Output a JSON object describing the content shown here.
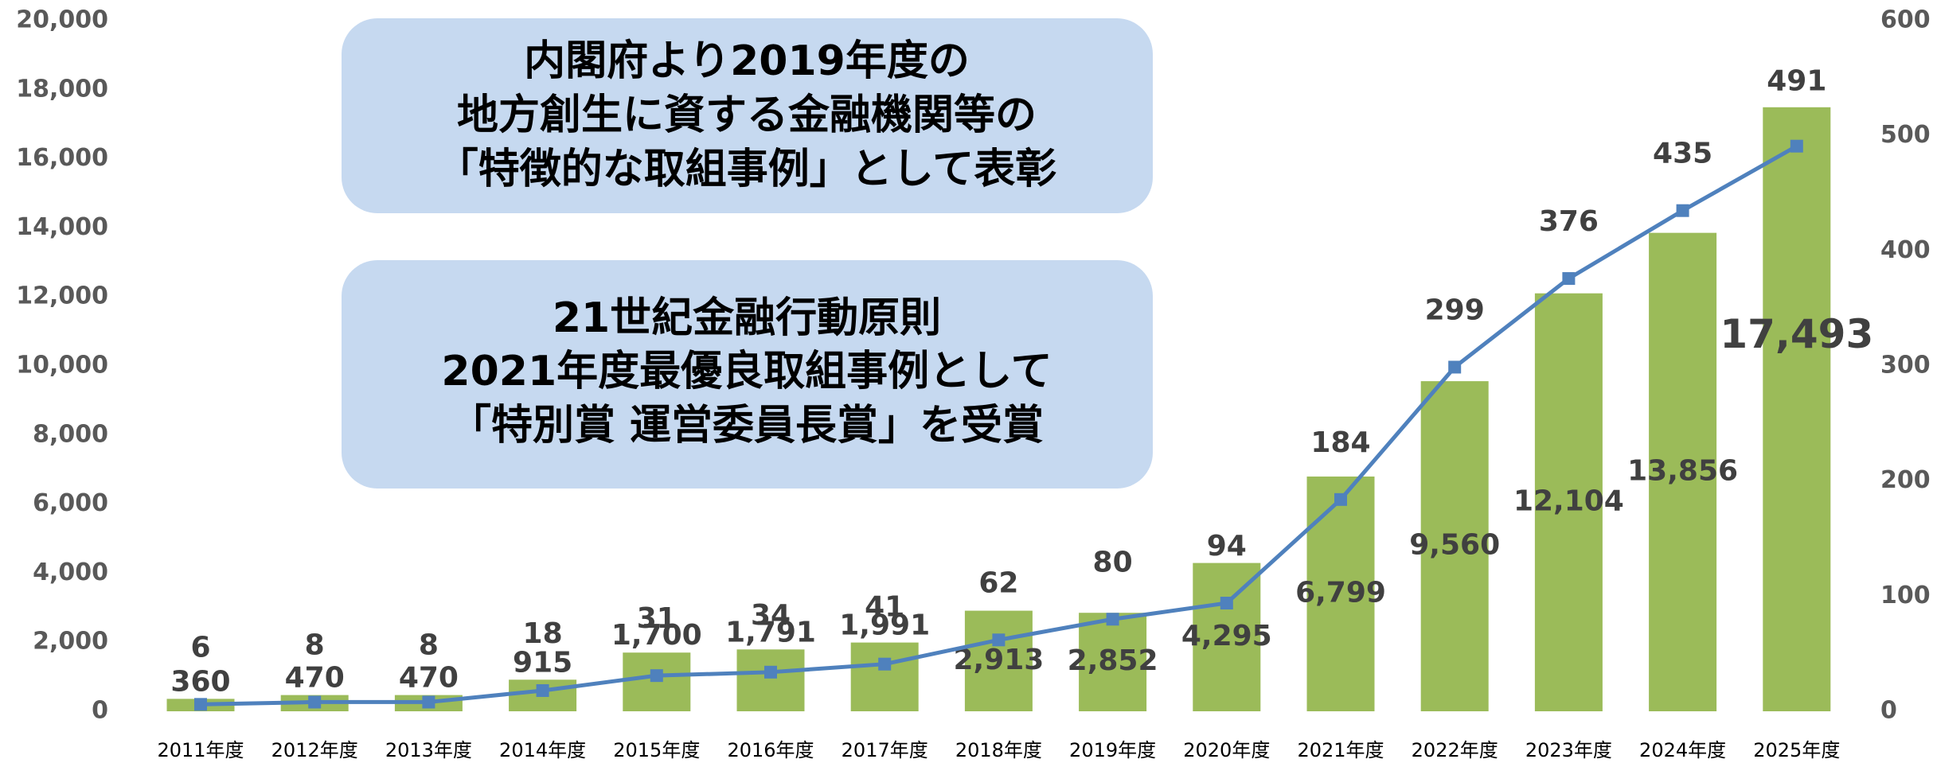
{
  "chart_data": {
    "type": "combo",
    "categories": [
      "2011年度",
      "2012年度",
      "2013年度",
      "2014年度",
      "2015年度",
      "2016年度",
      "2017年度",
      "2018年度",
      "2019年度",
      "2020年度",
      "2021年度",
      "2022年度",
      "2023年度",
      "2024年度",
      "2025年度"
    ],
    "series": [
      {
        "type": "bar",
        "color": "#9bbb59",
        "values": [
          360,
          470,
          470,
          915,
          1700,
          1791,
          1991,
          2913,
          2852,
          4295,
          6799,
          9560,
          12104,
          13856,
          17493
        ],
        "value_labels": [
          "360",
          "470",
          "470",
          "915",
          "1,700",
          "1,791",
          "1,991",
          "2,913",
          "2,852",
          "4,295",
          "6,799",
          "9,560",
          "12,104",
          "13,856",
          "17,493"
        ]
      },
      {
        "type": "line",
        "axis": "y2",
        "color": "#4f81bd",
        "values": [
          6,
          8,
          8,
          18,
          31,
          34,
          41,
          62,
          80,
          94,
          184,
          299,
          376,
          435,
          491
        ]
      }
    ],
    "highlight_last_color": "#c00000",
    "ylim": [
      0,
      20000
    ],
    "yticks": [
      0,
      {
        "value": 2000,
        "label": "2,000"
      },
      {
        "value": 4000,
        "label": "4,000"
      },
      {
        "value": 6000,
        "label": "6,000"
      },
      {
        "value": 8000,
        "label": "8,000"
      },
      {
        "value": 10000,
        "label": "10,000"
      },
      {
        "value": 12000,
        "label": "12,000"
      },
      {
        "value": 14000,
        "label": "14,000"
      },
      {
        "value": 16000,
        "label": "16,000"
      },
      {
        "value": 18000,
        "label": "18,000"
      },
      {
        "value": 20000,
        "label": "20,000"
      }
    ],
    "y2lim": [
      0,
      600
    ],
    "y2ticks": [
      0,
      100,
      200,
      300,
      400,
      500,
      600
    ],
    "annotations": [
      {
        "lines": [
          "内閣府より2019年度の",
          "地方創生に資する金融機関等の",
          "「特徴的な取組事例」として表彰"
        ]
      },
      {
        "lines": [
          "21世紀金融行動原則",
          "2021年度最優良取組事例として",
          "「特別賞 運営委員長賞」を受賞"
        ]
      }
    ]
  }
}
